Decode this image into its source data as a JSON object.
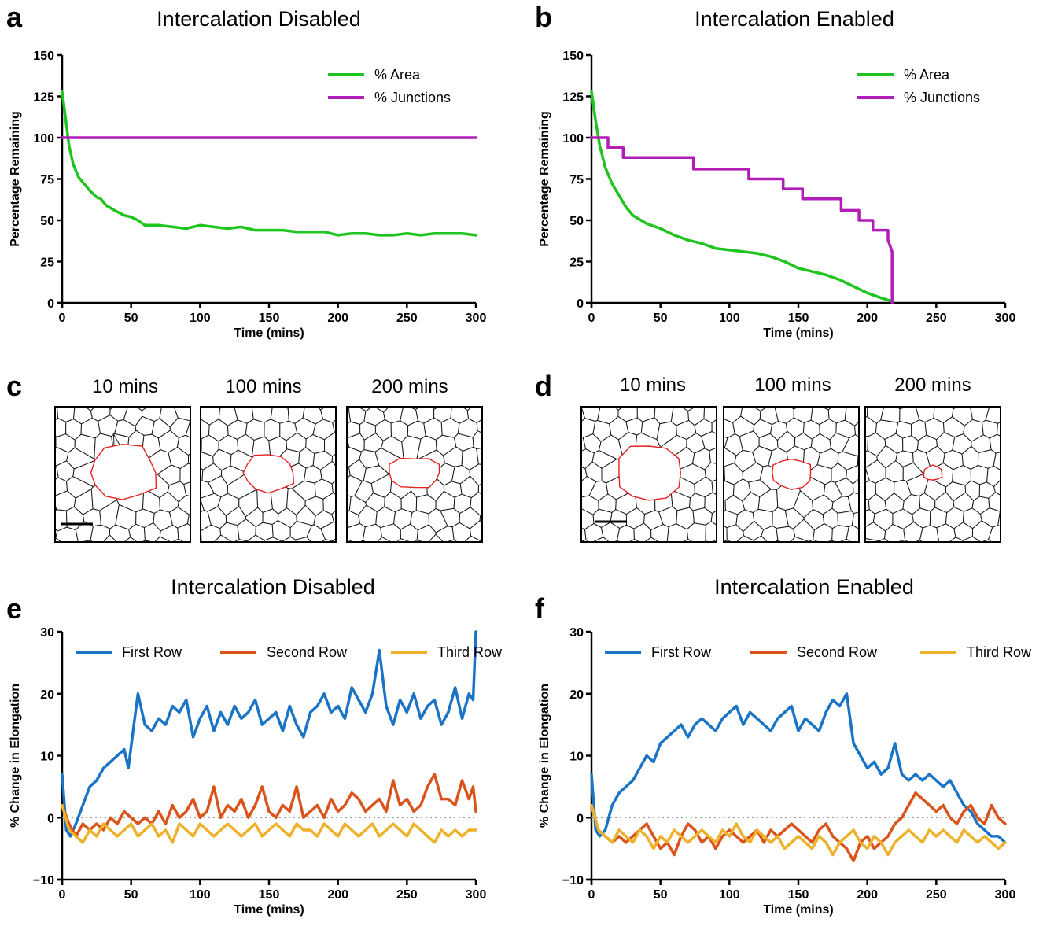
{
  "colors": {
    "area": "#1fc41f",
    "junctions": "#b21db8",
    "first_row": "#1a73c4",
    "second_row": "#d9531b",
    "third_row": "#eeb12b",
    "wound_outline": "#e52222",
    "reference_line": "#9a9a9a"
  },
  "panels": {
    "a": {
      "letter": "a",
      "title": "Intercalation Disabled"
    },
    "b": {
      "letter": "b",
      "title": "Intercalation Enabled"
    },
    "c": {
      "letter": "c",
      "snapshots": [
        "10 mins",
        "100 mins",
        "200 mins"
      ]
    },
    "d": {
      "letter": "d",
      "snapshots": [
        "10 mins",
        "100 mins",
        "200 mins"
      ]
    },
    "e": {
      "letter": "e",
      "title": "Intercalation Disabled"
    },
    "f": {
      "letter": "f",
      "title": "Intercalation Enabled"
    }
  },
  "chart_data": [
    {
      "panel": "a",
      "type": "line",
      "title": "Intercalation Disabled",
      "xlabel": "Time (mins)",
      "ylabel": "Percentage Remaining",
      "xlim": [
        0,
        300
      ],
      "ylim": [
        0,
        150
      ],
      "xticks": [
        0,
        50,
        100,
        150,
        200,
        250,
        300
      ],
      "yticks": [
        0,
        25,
        50,
        75,
        100,
        125,
        150
      ],
      "legend_position": "top-right",
      "grid": false,
      "series": [
        {
          "name": "% Area",
          "color": "#1fc41f",
          "x": [
            0,
            2,
            5,
            8,
            12,
            16,
            20,
            25,
            28,
            32,
            38,
            45,
            50,
            55,
            60,
            70,
            80,
            90,
            100,
            110,
            120,
            130,
            140,
            150,
            160,
            170,
            180,
            190,
            200,
            210,
            220,
            230,
            240,
            250,
            260,
            270,
            280,
            290,
            300
          ],
          "y": [
            128,
            115,
            95,
            84,
            76,
            72,
            68,
            64,
            63,
            59,
            56,
            53,
            52,
            50,
            47,
            47,
            46,
            45,
            47,
            46,
            45,
            46,
            44,
            44,
            44,
            43,
            43,
            43,
            41,
            42,
            42,
            41,
            41,
            42,
            41,
            42,
            42,
            42,
            41
          ]
        },
        {
          "name": "% Junctions",
          "color": "#b21db8",
          "x": [
            0,
            300
          ],
          "y": [
            100,
            100
          ]
        }
      ]
    },
    {
      "panel": "b",
      "type": "line",
      "title": "Intercalation Enabled",
      "xlabel": "Time (mins)",
      "ylabel": "Percentage Remaining",
      "xlim": [
        0,
        300
      ],
      "ylim": [
        0,
        150
      ],
      "xticks": [
        0,
        50,
        100,
        150,
        200,
        250,
        300
      ],
      "yticks": [
        0,
        25,
        50,
        75,
        100,
        125,
        150
      ],
      "legend_position": "top-right",
      "grid": false,
      "series": [
        {
          "name": "% Area",
          "color": "#1fc41f",
          "x": [
            0,
            3,
            6,
            10,
            15,
            20,
            25,
            30,
            40,
            50,
            60,
            70,
            80,
            90,
            100,
            110,
            120,
            130,
            140,
            150,
            160,
            170,
            180,
            190,
            200,
            210,
            218
          ],
          "y": [
            128,
            110,
            95,
            82,
            72,
            65,
            58,
            53,
            48,
            45,
            41,
            38,
            36,
            33,
            32,
            31,
            30,
            28,
            25,
            21,
            19,
            17,
            14,
            10,
            6,
            3,
            1
          ]
        },
        {
          "name": "% Junctions",
          "color": "#b21db8",
          "x": [
            0,
            12,
            12,
            23,
            23,
            74,
            74,
            114,
            114,
            139,
            139,
            153,
            153,
            181,
            181,
            194,
            194,
            204,
            204,
            215,
            215,
            218,
            218
          ],
          "y": [
            100,
            100,
            94,
            94,
            88,
            88,
            81,
            81,
            75,
            75,
            69,
            69,
            63,
            63,
            56,
            56,
            50,
            50,
            44,
            44,
            38,
            31,
            0
          ]
        }
      ]
    },
    {
      "panel": "e",
      "type": "line",
      "title": "Intercalation Disabled",
      "xlabel": "Time (mins)",
      "ylabel": "% Change in Elongation",
      "xlim": [
        0,
        300
      ],
      "ylim": [
        -10,
        30
      ],
      "xticks": [
        0,
        50,
        100,
        150,
        200,
        250,
        300
      ],
      "yticks": [
        -10,
        0,
        10,
        20,
        30
      ],
      "reference_line_y": 0,
      "legend_position": "top",
      "grid": false,
      "series": [
        {
          "name": "First Row",
          "color": "#1a73c4",
          "x": [
            0,
            3,
            6,
            10,
            15,
            20,
            25,
            30,
            35,
            40,
            45,
            48,
            52,
            55,
            60,
            65,
            70,
            75,
            80,
            85,
            90,
            95,
            100,
            105,
            110,
            115,
            120,
            125,
            130,
            135,
            140,
            145,
            150,
            155,
            160,
            165,
            170,
            175,
            180,
            185,
            190,
            195,
            200,
            205,
            210,
            215,
            220,
            225,
            230,
            235,
            240,
            245,
            250,
            255,
            260,
            265,
            270,
            275,
            280,
            285,
            290,
            295,
            298,
            300
          ],
          "y": [
            7,
            -2,
            -3,
            -1,
            2,
            5,
            6,
            8,
            9,
            10,
            11,
            8,
            15,
            20,
            15,
            14,
            16,
            15,
            18,
            17,
            19,
            13,
            16,
            18,
            14,
            17,
            15,
            18,
            16,
            17,
            19,
            15,
            16,
            17,
            14,
            18,
            15,
            13,
            17,
            18,
            20,
            17,
            18,
            16,
            21,
            19,
            17,
            20,
            27,
            18,
            15,
            19,
            17,
            20,
            16,
            18,
            19,
            15,
            17,
            21,
            16,
            20,
            19,
            30
          ]
        },
        {
          "name": "Second Row",
          "color": "#d9531b",
          "x": [
            0,
            5,
            10,
            15,
            20,
            25,
            30,
            35,
            40,
            45,
            50,
            55,
            60,
            65,
            70,
            75,
            80,
            85,
            90,
            95,
            100,
            105,
            110,
            115,
            120,
            125,
            130,
            135,
            140,
            145,
            150,
            155,
            160,
            165,
            170,
            175,
            180,
            185,
            190,
            195,
            200,
            205,
            210,
            215,
            220,
            225,
            230,
            235,
            240,
            245,
            250,
            255,
            260,
            265,
            270,
            275,
            280,
            285,
            290,
            295,
            298,
            300
          ],
          "y": [
            2,
            -1,
            -3,
            -1,
            -2,
            -1,
            -2,
            0,
            -1,
            1,
            0,
            -1,
            0,
            -1,
            1,
            -1,
            2,
            0,
            1,
            3,
            0,
            1,
            5,
            0,
            2,
            1,
            3,
            0,
            2,
            5,
            1,
            0,
            2,
            1,
            5,
            0,
            1,
            2,
            0,
            3,
            1,
            2,
            4,
            3,
            1,
            2,
            3,
            1,
            6,
            2,
            3,
            1,
            2,
            5,
            7,
            3,
            3,
            2,
            6,
            3,
            5,
            1
          ]
        },
        {
          "name": "Third Row",
          "color": "#eeb12b",
          "x": [
            0,
            5,
            10,
            15,
            20,
            25,
            30,
            35,
            40,
            45,
            50,
            55,
            60,
            65,
            70,
            75,
            80,
            85,
            90,
            95,
            100,
            105,
            110,
            115,
            120,
            125,
            130,
            135,
            140,
            145,
            150,
            155,
            160,
            165,
            170,
            175,
            180,
            185,
            190,
            195,
            200,
            205,
            210,
            215,
            220,
            225,
            230,
            235,
            240,
            245,
            250,
            255,
            260,
            265,
            270,
            275,
            280,
            285,
            290,
            295,
            300
          ],
          "y": [
            2,
            -2,
            -3,
            -4,
            -2,
            -3,
            -1,
            -2,
            -3,
            -2,
            -1,
            -3,
            -2,
            -1,
            -3,
            -2,
            -4,
            -1,
            -2,
            -3,
            -1,
            -2,
            -3,
            -2,
            -1,
            -2,
            -3,
            -2,
            -1,
            -3,
            -2,
            -1,
            -2,
            -3,
            -1,
            -2,
            -2,
            -3,
            -1,
            -2,
            -3,
            -1,
            -2,
            -3,
            -2,
            -1,
            -3,
            -2,
            -1,
            -2,
            -3,
            -1,
            -2,
            -3,
            -4,
            -2,
            -3,
            -2,
            -3,
            -2,
            -2
          ]
        }
      ]
    },
    {
      "panel": "f",
      "type": "line",
      "title": "Intercalation Enabled",
      "xlabel": "Time (mins)",
      "ylabel": "% Change in Elongation",
      "xlim": [
        0,
        300
      ],
      "ylim": [
        -10,
        30
      ],
      "xticks": [
        0,
        50,
        100,
        150,
        200,
        250,
        300
      ],
      "yticks": [
        -10,
        0,
        10,
        20,
        30
      ],
      "reference_line_y": 0,
      "legend_position": "top",
      "grid": false,
      "series": [
        {
          "name": "First Row",
          "color": "#1a73c4",
          "x": [
            0,
            3,
            6,
            10,
            15,
            20,
            25,
            30,
            35,
            40,
            45,
            50,
            55,
            60,
            65,
            70,
            75,
            80,
            85,
            90,
            95,
            100,
            105,
            110,
            115,
            120,
            125,
            130,
            135,
            140,
            145,
            150,
            155,
            160,
            165,
            170,
            175,
            180,
            185,
            190,
            195,
            200,
            205,
            210,
            215,
            220,
            225,
            230,
            235,
            240,
            245,
            250,
            255,
            260,
            265,
            270,
            275,
            280,
            285,
            290,
            295,
            300
          ],
          "y": [
            7,
            -2,
            -3,
            -2,
            2,
            4,
            5,
            6,
            8,
            10,
            9,
            12,
            13,
            14,
            15,
            13,
            15,
            16,
            15,
            14,
            16,
            17,
            18,
            15,
            17,
            16,
            15,
            14,
            16,
            17,
            18,
            14,
            16,
            15,
            14,
            17,
            19,
            18,
            20,
            12,
            10,
            8,
            9,
            7,
            8,
            12,
            7,
            6,
            7,
            6,
            7,
            6,
            5,
            6,
            4,
            2,
            1,
            -1,
            -2,
            -3,
            -3,
            -4
          ]
        },
        {
          "name": "Second Row",
          "color": "#d9531b",
          "x": [
            0,
            5,
            10,
            15,
            20,
            25,
            30,
            35,
            40,
            45,
            50,
            55,
            60,
            65,
            70,
            75,
            80,
            85,
            90,
            95,
            100,
            105,
            110,
            115,
            120,
            125,
            130,
            135,
            140,
            145,
            150,
            155,
            160,
            165,
            170,
            175,
            180,
            185,
            190,
            195,
            200,
            205,
            210,
            215,
            220,
            225,
            230,
            235,
            240,
            245,
            250,
            255,
            260,
            265,
            270,
            275,
            280,
            285,
            290,
            295,
            300
          ],
          "y": [
            2,
            -2,
            -3,
            -4,
            -3,
            -4,
            -3,
            -2,
            -1,
            -3,
            -5,
            -4,
            -6,
            -3,
            -1,
            -2,
            -4,
            -3,
            -5,
            -3,
            -2,
            -3,
            -4,
            -3,
            -2,
            -4,
            -2,
            -3,
            -2,
            -1,
            -2,
            -3,
            -4,
            -2,
            -1,
            -3,
            -4,
            -5,
            -7,
            -4,
            -3,
            -5,
            -4,
            -3,
            -1,
            0,
            2,
            4,
            3,
            2,
            1,
            2,
            0,
            -1,
            1,
            2,
            0,
            -1,
            2,
            0,
            -1
          ]
        },
        {
          "name": "Third Row",
          "color": "#eeb12b",
          "x": [
            0,
            5,
            10,
            15,
            20,
            25,
            30,
            35,
            40,
            45,
            50,
            55,
            60,
            65,
            70,
            75,
            80,
            85,
            90,
            95,
            100,
            105,
            110,
            115,
            120,
            125,
            130,
            135,
            140,
            145,
            150,
            155,
            160,
            165,
            170,
            175,
            180,
            185,
            190,
            195,
            200,
            205,
            210,
            215,
            220,
            225,
            230,
            235,
            240,
            245,
            250,
            255,
            260,
            265,
            270,
            275,
            280,
            285,
            290,
            295,
            300
          ],
          "y": [
            2,
            -2,
            -3,
            -4,
            -2,
            -3,
            -4,
            -2,
            -3,
            -5,
            -3,
            -4,
            -2,
            -3,
            -4,
            -3,
            -2,
            -3,
            -4,
            -2,
            -3,
            -1,
            -3,
            -4,
            -2,
            -3,
            -4,
            -3,
            -5,
            -4,
            -3,
            -4,
            -5,
            -3,
            -4,
            -6,
            -4,
            -3,
            -2,
            -4,
            -5,
            -3,
            -4,
            -6,
            -4,
            -3,
            -2,
            -3,
            -4,
            -2,
            -3,
            -2,
            -3,
            -4,
            -2,
            -3,
            -4,
            -3,
            -4,
            -5,
            -4
          ]
        }
      ]
    }
  ]
}
